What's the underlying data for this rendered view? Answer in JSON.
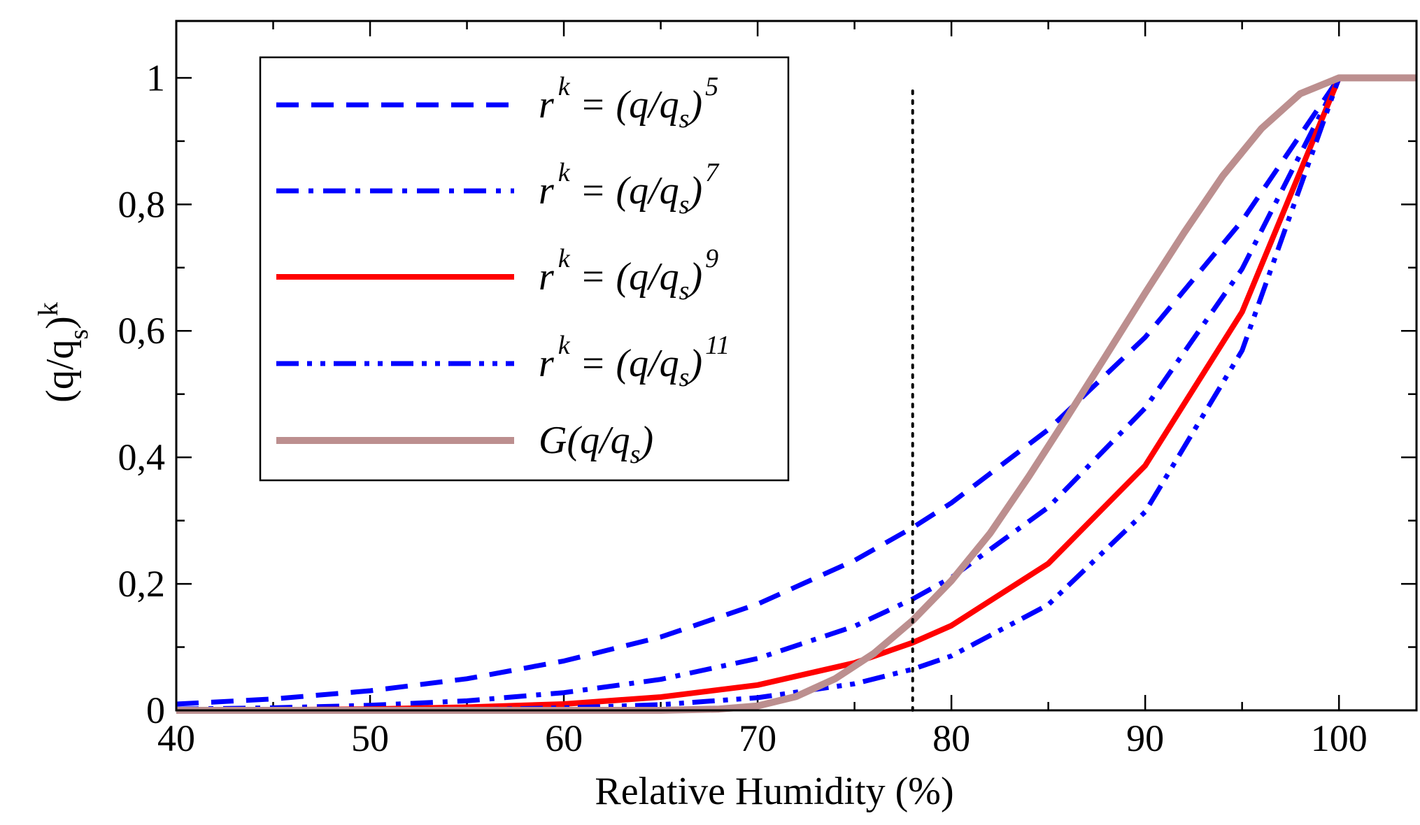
{
  "chart_data": {
    "type": "line",
    "title": "",
    "xlabel": "Relative Humidity (%)",
    "ylabel": "(q/q_s)^k",
    "ylabel_parts": {
      "base": "(q/q",
      "sub": "s",
      "close": ")",
      "sup": "k"
    },
    "xlim": [
      40,
      104
    ],
    "ylim": [
      0,
      1.09
    ],
    "x_ticks": [
      40,
      50,
      60,
      70,
      80,
      90,
      100
    ],
    "x_tick_labels": [
      "40",
      "50",
      "60",
      "70",
      "80",
      "90",
      "100"
    ],
    "y_ticks": [
      0,
      0.2,
      0.4,
      0.6,
      0.8,
      1
    ],
    "y_tick_labels": [
      "0",
      "0,2",
      "0,4",
      "0,6",
      "0,8",
      "1"
    ],
    "grid": false,
    "legend_position": "top-left",
    "reference_line": {
      "x": 78,
      "style": "dotted",
      "color": "#000000"
    },
    "series": [
      {
        "name": "r^k = (q/q_s)^5",
        "legend": {
          "lhs": "r",
          "lhs_sup": "k",
          "rhs": "= (q/q",
          "rhs_sub": "s",
          "rhs_close": ")",
          "rhs_sup": "5"
        },
        "style": "dashed",
        "color": "#0000ff",
        "x": [
          40,
          45,
          50,
          55,
          60,
          65,
          70,
          75,
          78,
          80,
          85,
          90,
          95,
          100,
          104
        ],
        "y": [
          0.01,
          0.018,
          0.031,
          0.05,
          0.078,
          0.116,
          0.168,
          0.237,
          0.289,
          0.328,
          0.444,
          0.59,
          0.774,
          1.0,
          1.0
        ]
      },
      {
        "name": "r^k = (q/q_s)^7",
        "legend": {
          "lhs": "r",
          "lhs_sup": "k",
          "rhs": "= (q/q",
          "rhs_sub": "s",
          "rhs_close": ")",
          "rhs_sup": "7"
        },
        "style": "dash-dot",
        "color": "#0000ff",
        "x": [
          40,
          45,
          50,
          55,
          60,
          65,
          70,
          75,
          78,
          80,
          85,
          90,
          95,
          100,
          104
        ],
        "y": [
          0.002,
          0.004,
          0.008,
          0.015,
          0.028,
          0.049,
          0.082,
          0.133,
          0.176,
          0.21,
          0.321,
          0.478,
          0.698,
          1.0,
          1.0
        ]
      },
      {
        "name": "r^k = (q/q_s)^9",
        "legend": {
          "lhs": "r",
          "lhs_sup": "k",
          "rhs": "= (q/q",
          "rhs_sub": "s",
          "rhs_close": ")",
          "rhs_sup": "9"
        },
        "style": "solid",
        "color": "#ff0000",
        "x": [
          40,
          45,
          50,
          55,
          60,
          65,
          70,
          75,
          78,
          80,
          85,
          90,
          95,
          100,
          104
        ],
        "y": [
          0.0003,
          0.0008,
          0.002,
          0.005,
          0.01,
          0.021,
          0.04,
          0.075,
          0.107,
          0.134,
          0.232,
          0.387,
          0.63,
          1.0,
          1.0
        ]
      },
      {
        "name": "r^k = (q/q_s)^11",
        "legend": {
          "lhs": "r",
          "lhs_sup": "k",
          "rhs": "= (q/q",
          "rhs_sub": "s",
          "rhs_close": ")",
          "rhs_sup": "11"
        },
        "style": "dash-dot-dot",
        "color": "#0000ff",
        "x": [
          40,
          45,
          50,
          55,
          60,
          65,
          70,
          75,
          78,
          80,
          85,
          90,
          95,
          100,
          104
        ],
        "y": [
          4e-05,
          0.0002,
          0.0005,
          0.001,
          0.004,
          0.009,
          0.02,
          0.042,
          0.065,
          0.086,
          0.167,
          0.314,
          0.569,
          1.0,
          1.0
        ]
      },
      {
        "name": "G(q/q_s)",
        "legend": {
          "lhs": "G(q/q",
          "lhs_sub": "s",
          "lhs_close": ")"
        },
        "style": "solid-thick",
        "color": "#bc8f8f",
        "x": [
          40,
          60,
          65,
          68,
          70,
          72,
          74,
          76,
          78,
          80,
          82,
          84,
          86,
          88,
          90,
          92,
          94,
          96,
          98,
          100,
          104
        ],
        "y": [
          0,
          0,
          0,
          0.002,
          0.007,
          0.022,
          0.05,
          0.09,
          0.142,
          0.205,
          0.28,
          0.37,
          0.465,
          0.562,
          0.66,
          0.755,
          0.845,
          0.92,
          0.975,
          1.0,
          1.0
        ]
      }
    ]
  }
}
